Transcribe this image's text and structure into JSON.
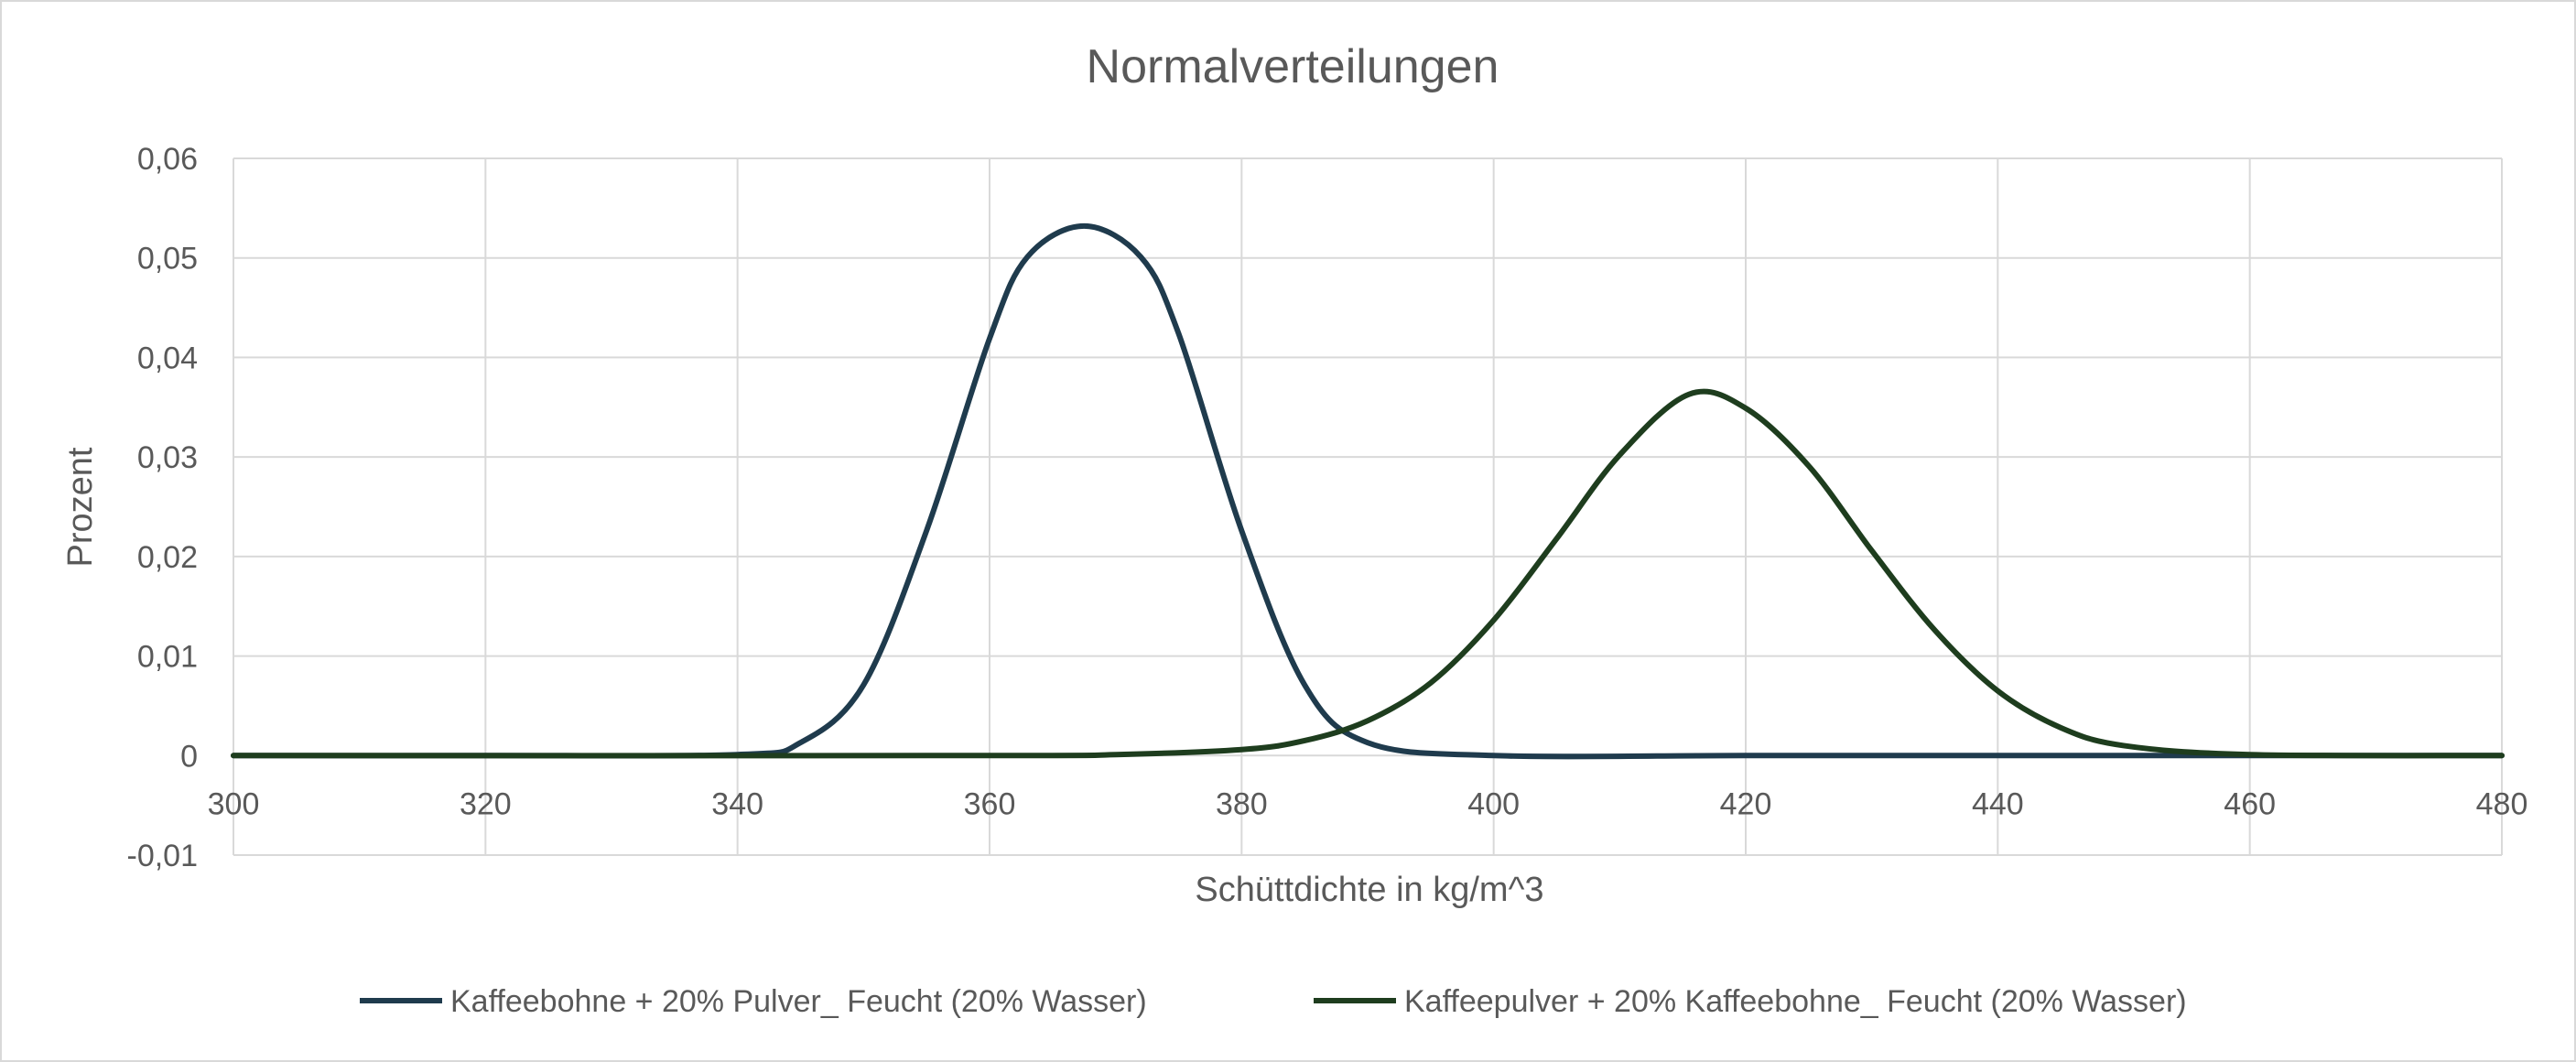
{
  "chart_data": {
    "type": "line",
    "title": "Normalverteilungen",
    "xlabel": "Schüttdichte in kg/m^3",
    "ylabel": "Prozent",
    "xlim": [
      300,
      480
    ],
    "ylim": [
      -0.01,
      0.06
    ],
    "x_ticks": [
      300,
      320,
      340,
      360,
      380,
      400,
      420,
      440,
      460,
      480
    ],
    "x_tick_labels": [
      "300",
      "320",
      "340",
      "360",
      "380",
      "400",
      "420",
      "440",
      "460",
      "480"
    ],
    "y_ticks": [
      -0.01,
      0,
      0.01,
      0.02,
      0.03,
      0.04,
      0.05,
      0.06
    ],
    "y_tick_labels": [
      "-0,01",
      "0",
      "0,01",
      "0,02",
      "0,03",
      "0,04",
      "0,05",
      "0,06"
    ],
    "grid": true,
    "legend_position": "bottom",
    "series": [
      {
        "name": "Kaffeebohne + 20% Pulver_ Feucht (20% Wasser)",
        "color": "#1f3b4d",
        "x": [
          300,
          320,
          340,
          345,
          350,
          355,
          360,
          363,
          367.5,
          372,
          375,
          380,
          385,
          390,
          400,
          420,
          440,
          460,
          480
        ],
        "y": [
          0,
          0,
          0.0001,
          0.0013,
          0.0071,
          0.0226,
          0.0419,
          0.0501,
          0.0532,
          0.0501,
          0.0424,
          0.0226,
          0.0071,
          0.0013,
          0.0,
          0,
          0,
          0,
          0
        ]
      },
      {
        "name": "Kaffeepulver + 20% Kaffeebohne_ Feucht (20% Wasser)",
        "color": "#1e3d1e",
        "x": [
          300,
          360,
          370,
          380,
          385,
          390,
          395,
          400,
          405,
          410,
          415.5,
          420,
          425,
          430,
          435,
          440,
          445,
          450,
          460,
          480
        ],
        "y": [
          0,
          0,
          0.0001,
          0.0006,
          0.0015,
          0.0035,
          0.0073,
          0.0136,
          0.0218,
          0.0302,
          0.0363,
          0.0349,
          0.0291,
          0.0206,
          0.0126,
          0.0065,
          0.0028,
          0.001,
          0.0001,
          0
        ]
      }
    ]
  }
}
